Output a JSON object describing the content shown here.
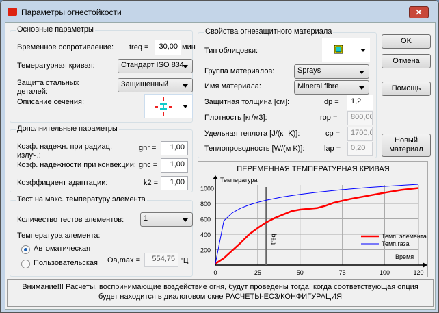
{
  "window": {
    "title": "Параметры огнестойкости",
    "close": "✕"
  },
  "basic": {
    "title": "Основные параметры",
    "time_label": "Временное сопротивление:",
    "treq_label": "treq =",
    "treq_value": "30,00",
    "treq_unit": "мин",
    "curve_label": "Темературная кривая:",
    "curve_value": "Стандарт ISO 834",
    "protection_label": "Защита стальных деталей:",
    "protection_value": "Защищенный",
    "section_label": "Описание сечения:"
  },
  "additional": {
    "title": "Дополнительные параметры",
    "rad_label": "Коэф. надежн. при радиац. излуч.:",
    "gnr_label": "gnr =",
    "gnr_value": "1,00",
    "conv_label": "Коэф. надежности при конвекции:",
    "gnc_label": "gnc =",
    "gnc_value": "1,00",
    "adapt_label": "Коэффициент адаптации:",
    "k2_label": "k2 =",
    "k2_value": "1,00"
  },
  "maxtemp": {
    "title": "Тест на макс. температуру элемента",
    "count_label": "Количество тестов элементов:",
    "count_value": "1",
    "temp_label": "Температура элемента:",
    "auto_label": "Автоматическая",
    "user_label": "Пользовательская",
    "auto_selected": true,
    "oa_label": "Оa,max =",
    "oa_value": "554,75",
    "oa_unit": "°Ц"
  },
  "material": {
    "title": "Свойства огнезащитного материала",
    "cladding_label": "Тип облицовки:",
    "group_label": "Группа материалов:",
    "group_value": "Sprays",
    "name_label": "Имя материала:",
    "name_value": "Mineral fibre",
    "thick_label": "Защитная толщина [см]:",
    "dp_label": "dp =",
    "dp_value": "1,2",
    "density_label": "Плотность [кг/м3]:",
    "rop_label": "rop =",
    "rop_value": "800,00",
    "heat_label": "Удельная теплота [J/(кг K)]:",
    "cp_label": "cp =",
    "cp_value": "1700,0",
    "cond_label": "Теплопроводность [W/(м K)]:",
    "lap_label": "lap =",
    "lap_value": "0,20"
  },
  "buttons": {
    "ok": "OK",
    "cancel": "Отмена",
    "help": "Помощь",
    "new_material": "Новый материал"
  },
  "status": "Внимание!!!   Расчеты, воспринимающие воздействие огня, будут проведены тогда, когда соответствующая опция будет находится в диалоговом окне РАСЧЕТЫ-EC3/КОНФИГУРАЦИЯ",
  "chart_data": {
    "type": "line",
    "title": "ПЕРЕМЕННАЯ ТЕМПЕРАТУРНАЯ КРИВАЯ",
    "xlabel": "Время",
    "ylabel": "Температура",
    "xlim": [
      0,
      120
    ],
    "ylim": [
      0,
      1100
    ],
    "grid": true,
    "legend": "right",
    "xticks": [
      "0",
      "25",
      "50",
      "75",
      "100",
      "120"
    ],
    "yticks": [
      "200",
      "400",
      "600",
      "800",
      "1000"
    ],
    "marker": {
      "x": 30,
      "label": "treq"
    },
    "series": [
      {
        "name": "Темп. элемента",
        "color": "#ff0000",
        "x": [
          0,
          5,
          10,
          15,
          20,
          25,
          30,
          35,
          40,
          45,
          50,
          55,
          60,
          65,
          70,
          80,
          90,
          100,
          110,
          120
        ],
        "y": [
          20,
          90,
          190,
          290,
          400,
          480,
          555,
          610,
          655,
          700,
          720,
          730,
          740,
          770,
          810,
          860,
          900,
          940,
          975,
          1000
        ]
      },
      {
        "name": "Темп.газа",
        "color": "#0000ff",
        "x": [
          0,
          5,
          10,
          15,
          20,
          25,
          30,
          40,
          50,
          60,
          75,
          90,
          105,
          120
        ],
        "y": [
          20,
          576,
          678,
          739,
          781,
          815,
          842,
          885,
          918,
          945,
          979,
          1006,
          1029,
          1049
        ]
      }
    ]
  }
}
